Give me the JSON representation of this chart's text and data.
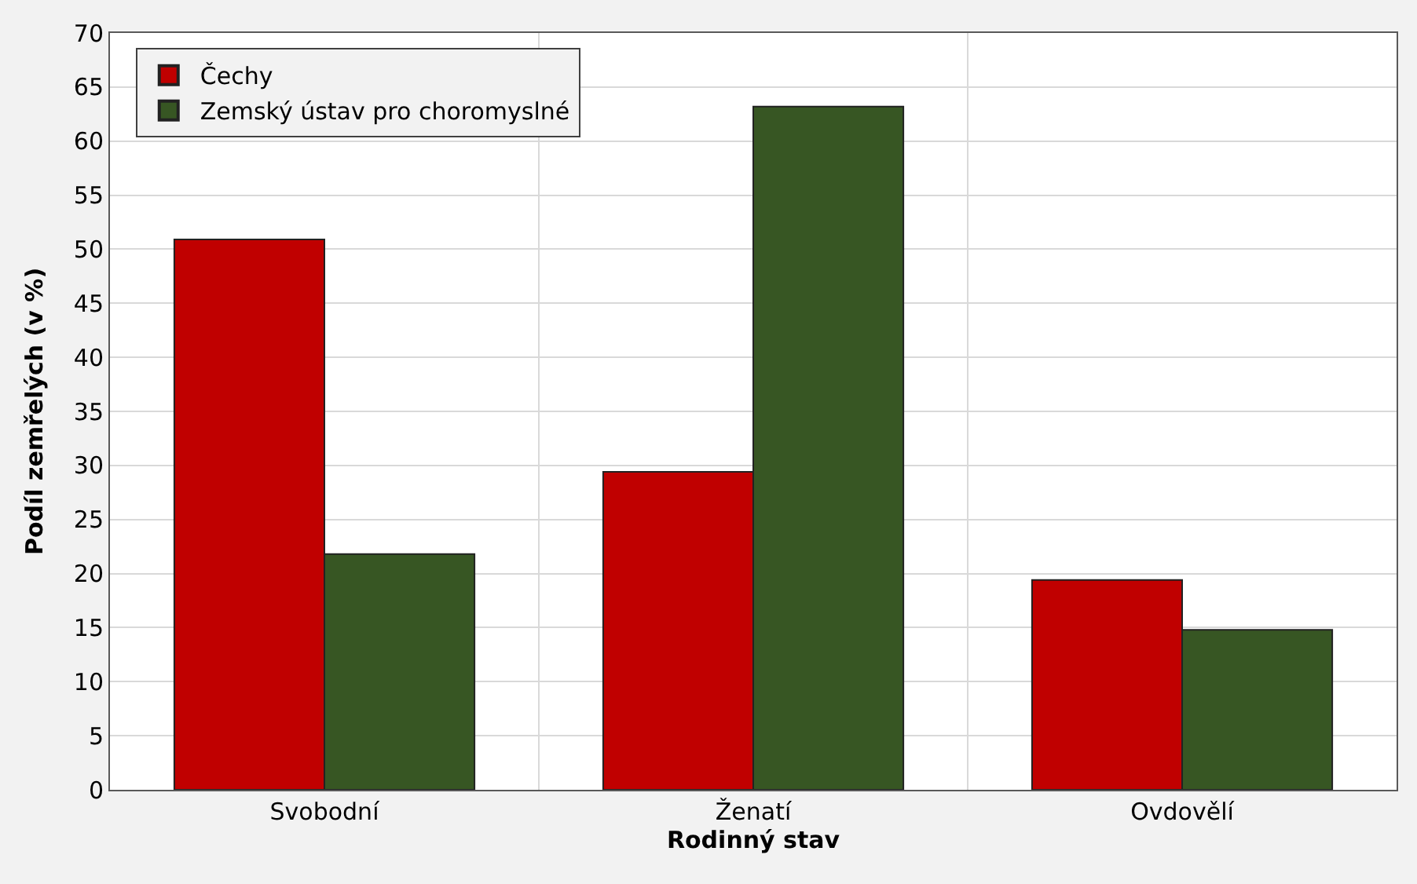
{
  "chart_data": {
    "type": "bar",
    "xlabel": "Rodinný stav",
    "ylabel": "Podíl zemřelých (v %)",
    "categories": [
      "Svobodní",
      "Ženatí",
      "Ovdovělí"
    ],
    "series": [
      {
        "name": "Čechy",
        "color": "#c00000",
        "values": [
          50.9,
          29.4,
          19.4
        ]
      },
      {
        "name": "Zemský ústav pro choromyslné",
        "color": "#375623",
        "values": [
          21.8,
          63.2,
          14.8
        ]
      }
    ],
    "ylim": [
      0,
      70
    ],
    "yticks": [
      0,
      5,
      10,
      15,
      20,
      25,
      30,
      35,
      40,
      45,
      50,
      55,
      60,
      65,
      70
    ],
    "grid": true,
    "legend": "top left"
  }
}
